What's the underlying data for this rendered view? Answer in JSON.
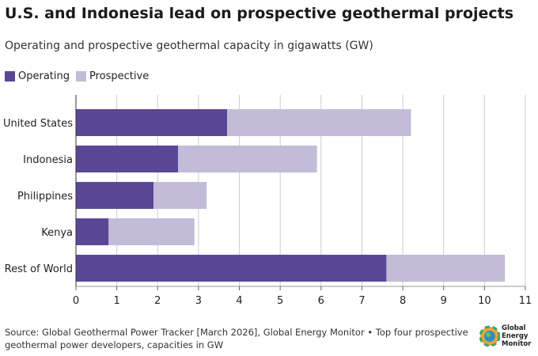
{
  "title": "U.S. and Indonesia lead on prospective geothermal projects",
  "subtitle": "Operating and prospective geothermal capacity in gigawatts (GW)",
  "legend": {
    "operating": "Operating",
    "prospective": "Prospective"
  },
  "colors": {
    "operating": "#5b4796",
    "prospective": "#c2bcd9",
    "grid": "#cccccc"
  },
  "chart_data": {
    "type": "bar",
    "orientation": "horizontal",
    "stacked": true,
    "categories": [
      "United States",
      "Indonesia",
      "Philippines",
      "Kenya",
      "Rest of World"
    ],
    "series": [
      {
        "name": "Operating",
        "values": [
          3.7,
          2.5,
          1.9,
          0.8,
          7.6
        ]
      },
      {
        "name": "Prospective",
        "values": [
          4.5,
          3.4,
          1.3,
          2.1,
          2.9
        ]
      }
    ],
    "xlim": [
      0,
      11
    ],
    "xticks": [
      0,
      1,
      2,
      3,
      4,
      5,
      6,
      7,
      8,
      9,
      10,
      11
    ],
    "grid": true,
    "legend_position": "top-left"
  },
  "footer": {
    "line1": "Source: Global Geothermal Power Tracker [March 2026], Global Energy Monitor • Top four prospective",
    "line2": "geothermal power developers, capacities in GW"
  },
  "logo": {
    "line1": "Global",
    "line2": "Energy",
    "line3": "Monitor"
  }
}
